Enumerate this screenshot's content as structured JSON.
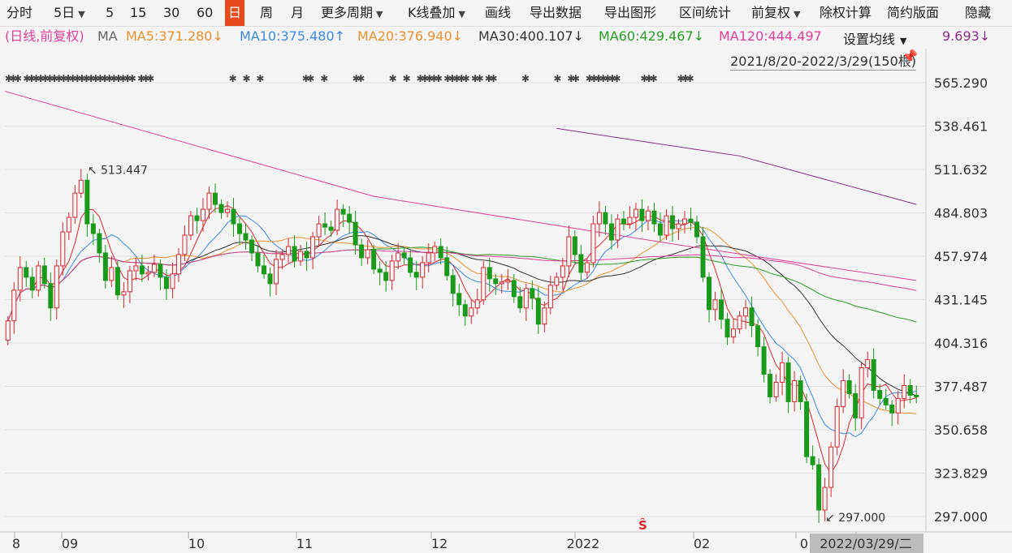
{
  "toolbar": {
    "items": [
      "分时",
      "5日",
      "5",
      "15",
      "30",
      "60",
      "日",
      "周",
      "月",
      "更多周期",
      "K线叠加",
      "画线",
      "导出数据",
      "导出图形",
      "区间统计",
      "前复权",
      "除权计算",
      "简约版面",
      "隐藏"
    ],
    "active": "日"
  },
  "ma_row": {
    "prefix": "(日线,前复权)",
    "ma_label": "MA",
    "ma5": "MA5:371.280↓",
    "ma10": "MA10:375.480↑",
    "ma20": "MA20:376.940↓",
    "ma30": "MA30:400.107↓",
    "ma60": "MA60:429.467↓",
    "ma120": "MA120:444.497",
    "ma250_tail": "9.693↓",
    "set_ma": "设置均线"
  },
  "range_label": "2021/8/20-2022/3/29(150根)",
  "colors": {
    "up": "#d9262e",
    "down": "#1a9a1a",
    "ma5": "#d9262e",
    "ma10": "#3d8be6",
    "ma20": "#e8922f",
    "ma30": "#333333",
    "ma60": "#2a9d2a",
    "ma120": "#e0409a",
    "ma250": "#8a2f8a"
  },
  "chart_data": {
    "type": "candlestick",
    "x_labels": [
      "8",
      "09",
      "10",
      "11",
      "12",
      "2022",
      "02",
      "0",
      "2022/03/29/二"
    ],
    "y_ticks": [
      "565.290",
      "538.461",
      "511.632",
      "484.803",
      "457.974",
      "431.145",
      "404.316",
      "377.487",
      "350.658",
      "323.829",
      "297.000"
    ],
    "ylim": [
      297.0,
      565.29
    ],
    "annotations": {
      "high": "513.447",
      "low": "297.000"
    },
    "close": [
      418,
      437,
      451,
      445,
      437,
      452,
      441,
      426,
      452,
      473,
      482,
      497,
      505,
      478,
      472,
      460,
      443,
      451,
      434,
      436,
      449,
      452,
      447,
      448,
      453,
      445,
      438,
      447,
      459,
      471,
      483,
      480,
      487,
      497,
      490,
      485,
      487,
      478,
      472,
      468,
      460,
      452,
      447,
      441,
      456,
      459,
      464,
      455,
      461,
      457,
      470,
      478,
      476,
      474,
      487,
      484,
      479,
      465,
      457,
      462,
      450,
      448,
      443,
      455,
      460,
      457,
      448,
      445,
      454,
      460,
      464,
      457,
      446,
      435,
      428,
      421,
      426,
      431,
      451,
      444,
      441,
      442,
      443,
      433,
      426,
      438,
      432,
      416,
      426,
      440,
      445,
      452,
      470,
      459,
      448,
      454,
      478,
      485,
      478,
      468,
      481,
      478,
      482,
      487,
      480,
      486,
      478,
      471,
      483,
      475,
      478,
      481,
      479,
      470,
      445,
      425,
      431,
      419,
      408,
      413,
      421,
      426,
      415,
      402,
      385,
      371,
      380,
      392,
      368,
      381,
      368,
      334,
      329,
      301,
      315,
      340,
      365,
      381,
      373,
      358,
      389,
      394,
      375,
      370,
      366,
      361,
      370,
      378,
      372,
      371
    ]
  }
}
